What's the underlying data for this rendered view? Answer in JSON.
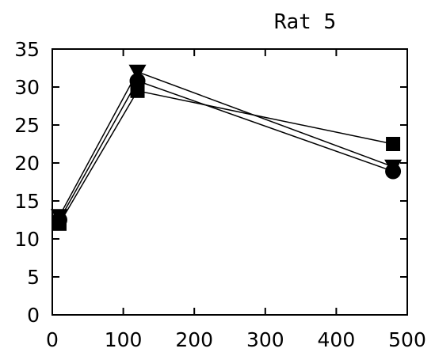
{
  "chart_data": {
    "type": "line",
    "title": "Rat 5",
    "xlabel": "",
    "ylabel": "",
    "xlim": [
      0,
      500
    ],
    "ylim": [
      0,
      35
    ],
    "x_ticks": [
      0,
      100,
      200,
      300,
      400,
      500
    ],
    "y_ticks": [
      0,
      5,
      10,
      15,
      20,
      25,
      30,
      35
    ],
    "grid": false,
    "series": [
      {
        "marker": "square",
        "x": [
          10,
          120,
          480
        ],
        "y": [
          12.0,
          29.5,
          22.5
        ]
      },
      {
        "marker": "circle",
        "x": [
          10,
          120,
          480
        ],
        "y": [
          12.5,
          30.8,
          18.9
        ]
      },
      {
        "marker": "triangle-down",
        "x": [
          10,
          120,
          480
        ],
        "y": [
          13.0,
          32.0,
          19.5
        ]
      }
    ],
    "colors": {
      "line": "#000000",
      "marker": "#000000"
    }
  }
}
